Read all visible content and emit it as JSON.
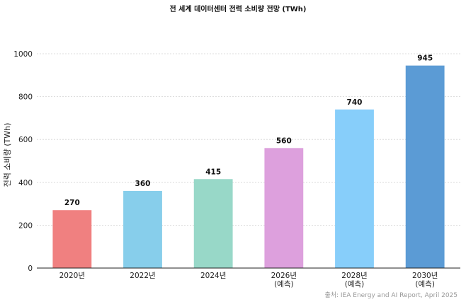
{
  "chart_data": {
    "type": "bar",
    "title": "전 세계 데이터센터 전력 소비량 전망 (TWh)",
    "ylabel": "전력 소비량 (TWh)",
    "xlabel": "",
    "categories": [
      [
        "2020년"
      ],
      [
        "2022년"
      ],
      [
        "2024년"
      ],
      [
        "2026년",
        "(예측)"
      ],
      [
        "2028년",
        "(예측)"
      ],
      [
        "2030년",
        "(예측)"
      ]
    ],
    "values": [
      270,
      360,
      415,
      560,
      740,
      945
    ],
    "value_labels": [
      "270",
      "360",
      "415",
      "560",
      "740",
      "945"
    ],
    "colors": [
      "#F08080",
      "#87CEEB",
      "#98D8C8",
      "#DDA0DD",
      "#87CEFA",
      "#5B9BD5"
    ],
    "ylim": [
      0,
      1000
    ],
    "yticks": [
      0,
      200,
      400,
      600,
      800,
      1000
    ],
    "grid": true,
    "source": "출처: IEA Energy and AI Report, April 2025"
  }
}
